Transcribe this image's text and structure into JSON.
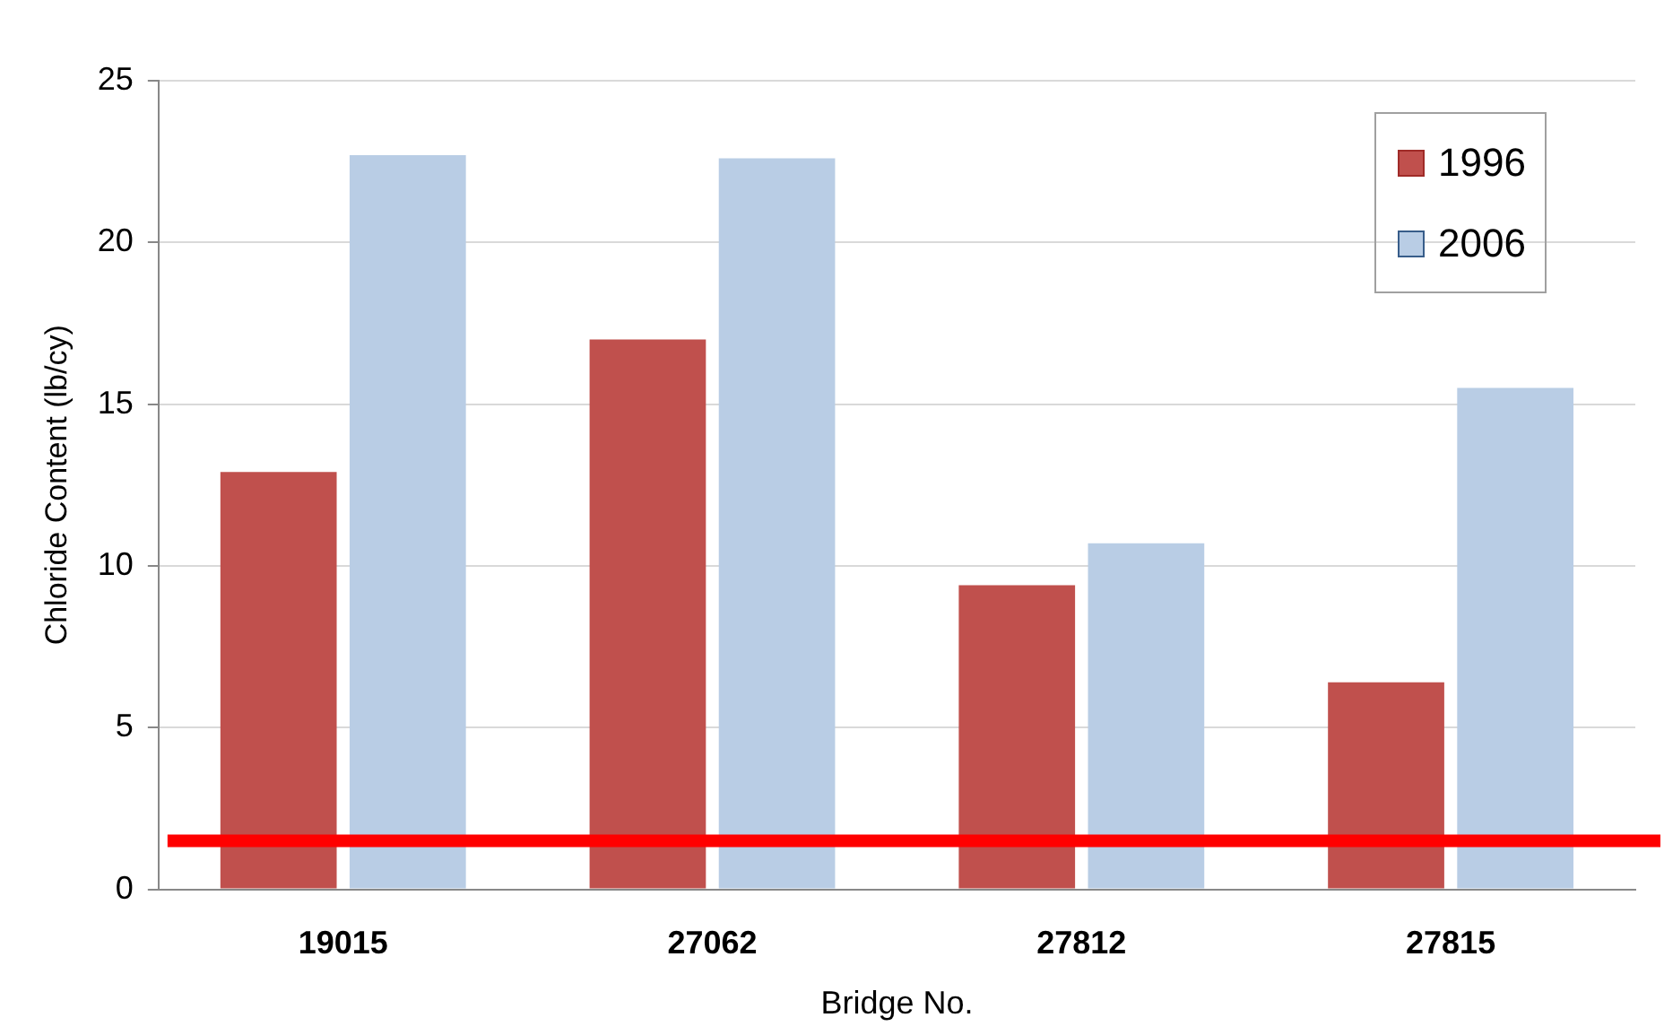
{
  "chart_data": {
    "type": "bar",
    "xlabel": "Bridge No.",
    "ylabel": "Chloride Content (lb/cy)",
    "categories": [
      "19015",
      "27062",
      "27812",
      "27815"
    ],
    "series": [
      {
        "name": "1996",
        "color": "#c0504d",
        "values": [
          12.9,
          17.0,
          9.4,
          6.4
        ]
      },
      {
        "name": "2006",
        "color": "#b9cde5",
        "values": [
          22.7,
          22.6,
          10.7,
          15.5
        ]
      }
    ],
    "ylim": [
      0,
      25
    ],
    "yticks": [
      0,
      5,
      10,
      15,
      20,
      25
    ],
    "grid": "y",
    "legend": "top right",
    "ref_lines": [
      {
        "axis": "y",
        "value": 1.5,
        "color": "#ff0000"
      }
    ]
  }
}
